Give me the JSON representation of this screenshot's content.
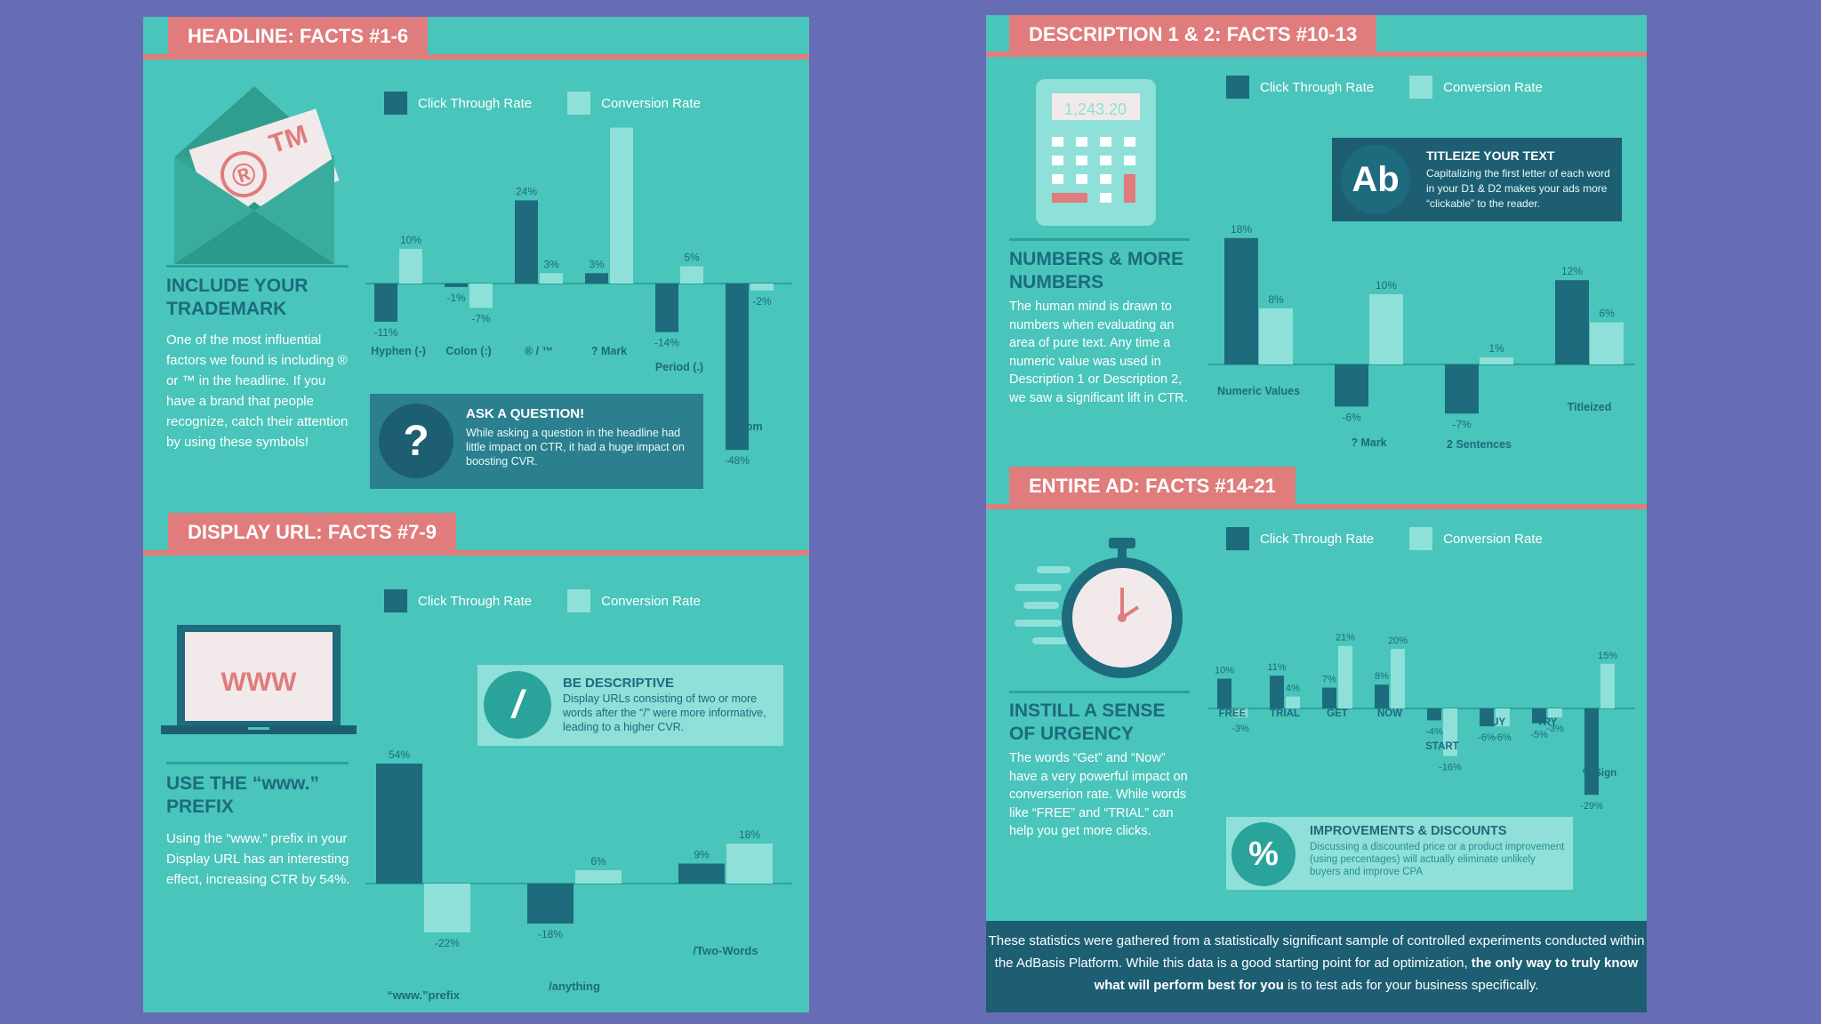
{
  "colors": {
    "background": "#676db5",
    "panel": "#49c5bb",
    "accent": "#e07c7c",
    "ctr": "#1d6b7d",
    "cvr": "#8ee0d8"
  },
  "legend": {
    "ctr": "Click Through Rate",
    "cvr": "Conversion Rate"
  },
  "headline": {
    "tab": "HEADLINE: FACTS #1-6",
    "title": "INCLUDE YOUR TRADEMARK",
    "body": "One of the most influential factors we found is including ® or ™ in the headline. If you have a brand that people recognize, catch their attention by using these symbols!",
    "icon": "envelope-trademark-icon",
    "icon_text": {
      "reg": "®",
      "tm": "TM"
    },
    "callout": {
      "icon": "question-icon",
      "glyph": "?",
      "title": "ASK A QUESTION!",
      "text": "While asking a question in the headline had little impact on CTR, it had a huge impact on boosting CVR."
    }
  },
  "display_url": {
    "tab": "DISPLAY URL: FACTS #7-9",
    "title": "USE THE “www.” PREFIX",
    "body": "Using the “www.” prefix in your Display URL has an interesting effect, increasing CTR by 54%.",
    "icon": "laptop-www-icon",
    "icon_text": "WWW",
    "callout": {
      "icon": "slash-icon",
      "glyph": "/",
      "title": "BE DESCRIPTIVE",
      "text": "Display URLs consisting of two or more words after the “/” were more informative, leading to a higher CVR."
    }
  },
  "description": {
    "tab": "DESCRIPTION 1 & 2: FACTS #10-13",
    "title": "NUMBERS & MORE NUMBERS",
    "body": "The human mind is drawn to numbers when evaluating an area of pure text. Any time a numeric value was used in Description 1 or Description 2, we saw a significant lift in CTR.",
    "icon": "calculator-icon",
    "icon_text": "1,243.20",
    "callout": {
      "icon": "text-case-icon",
      "glyph": "Ab",
      "title": "TITLEIZE YOUR TEXT",
      "text": "Capitalizing the first letter of each word in your D1 & D2 makes your ads more “clickable” to the reader."
    }
  },
  "entire_ad": {
    "tab": "ENTIRE AD: FACTS #14-21",
    "title": "INSTILL A SENSE OF URGENCY",
    "body": "The words “Get” and “Now” have a very powerful impact on converserion rate. While words like “FREE” and “TRIAL” can help you get more clicks.",
    "icon": "stopwatch-icon",
    "callout": {
      "icon": "percent-icon",
      "glyph": "%",
      "title": "IMPROVEMENTS & DISCOUNTS",
      "text": "Discussing a discounted price or a product improvement (using percentages) will actually eliminate unlikely buyers and improve CPA"
    }
  },
  "footer": {
    "part1": "These statistics were gathered from a statistically significant sample of controlled experiments conducted within the AdBasis Platform.  While this data is a good starting point for ad optimization, ",
    "bold": "the only way to truly know what will perform best for you",
    "part2": " is to test ads for your business specifically."
  },
  "chart_data": [
    {
      "id": "headline",
      "type": "bar",
      "categories": [
        "Hyphen (-)",
        "Colon (:)",
        "® / ™",
        "? Mark",
        "Period (.)",
        ".com"
      ],
      "series": [
        {
          "name": "Click Through Rate",
          "values": [
            -11,
            -1,
            24,
            3,
            -14,
            -48
          ]
        },
        {
          "name": "Conversion Rate",
          "values": [
            10,
            -7,
            3,
            45,
            5,
            -2
          ]
        }
      ],
      "value_labels": [
        [
          "-11%",
          "10%"
        ],
        [
          "-1%",
          "-7%"
        ],
        [
          "24%",
          "3%"
        ],
        [
          "3%",
          "45%"
        ],
        [
          "-14%",
          "5%"
        ],
        [
          "-48%",
          "-2%"
        ]
      ],
      "ylim": [
        -50,
        50
      ],
      "legend_position": "top-left"
    },
    {
      "id": "display_url",
      "type": "bar",
      "categories": [
        "“www.”prefix",
        "/anything",
        "/Two-Words"
      ],
      "series": [
        {
          "name": "Click Through Rate",
          "values": [
            54,
            -18,
            9
          ]
        },
        {
          "name": "Conversion Rate",
          "values": [
            -22,
            6,
            18
          ]
        }
      ],
      "value_labels": [
        [
          "54%",
          "-22%"
        ],
        [
          "-18%",
          "6%"
        ],
        [
          "9%",
          "18%"
        ]
      ],
      "ylim": [
        -25,
        55
      ],
      "legend_position": "top-left"
    },
    {
      "id": "description",
      "type": "bar",
      "categories": [
        "Numeric Values",
        "? Mark",
        "2 Sentences",
        "Titleized"
      ],
      "series": [
        {
          "name": "Click Through Rate",
          "values": [
            18,
            -6,
            -7,
            12
          ]
        },
        {
          "name": "Conversion Rate",
          "values": [
            8,
            10,
            1,
            6
          ]
        }
      ],
      "value_labels": [
        [
          "18%",
          "8%"
        ],
        [
          "-6%",
          "10%"
        ],
        [
          "-7%",
          "1%"
        ],
        [
          "12%",
          "6%"
        ]
      ],
      "ylim": [
        -10,
        20
      ],
      "legend_position": "top-left"
    },
    {
      "id": "entire_ad",
      "type": "bar",
      "categories": [
        "FREE",
        "TRIAL",
        "GET",
        "NOW",
        "START",
        "BUY",
        "TRY",
        "% Sign"
      ],
      "series": [
        {
          "name": "Click Through Rate",
          "values": [
            10,
            11,
            7,
            8,
            -4,
            -6,
            -5,
            -29
          ]
        },
        {
          "name": "Conversion Rate",
          "values": [
            -3,
            4,
            21,
            20,
            -16,
            -6,
            -3,
            15
          ]
        }
      ],
      "value_labels": [
        [
          "10%",
          "-3%"
        ],
        [
          "11%",
          "4%"
        ],
        [
          "7%",
          "21%"
        ],
        [
          "8%",
          "20%"
        ],
        [
          "-4%",
          "-16%"
        ],
        [
          "-6%",
          "-6%"
        ],
        [
          "-5%",
          "-3%"
        ],
        [
          "-29%",
          "15%"
        ]
      ],
      "ylim": [
        -30,
        22
      ],
      "legend_position": "top-left"
    }
  ]
}
